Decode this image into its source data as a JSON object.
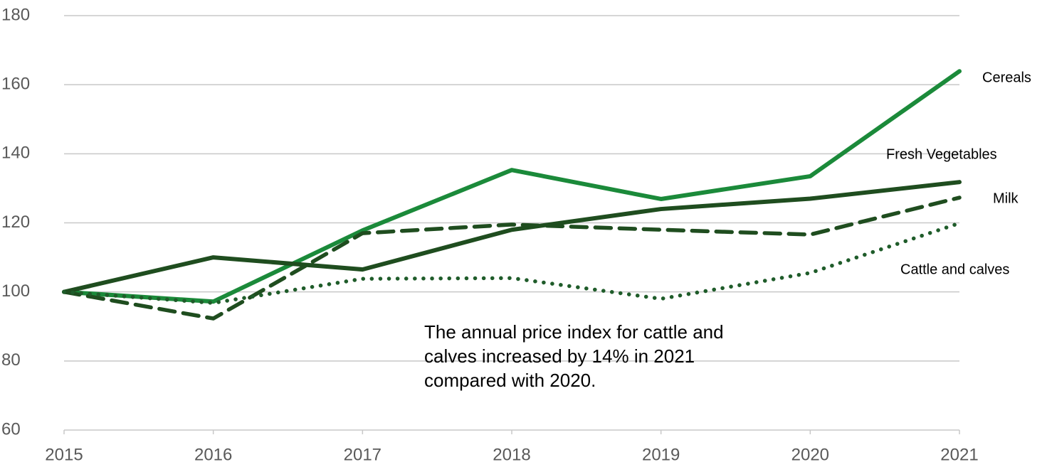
{
  "chart_data": {
    "type": "line",
    "annotation": "The annual price index for cattle and calves increased by 14% in 2021 compared with 2020.",
    "x": [
      2015,
      2016,
      2017,
      2018,
      2019,
      2020,
      2021
    ],
    "xlim": [
      2015,
      2021
    ],
    "xticks": [
      2015,
      2016,
      2017,
      2018,
      2019,
      2020,
      2021
    ],
    "ylim": [
      60,
      180
    ],
    "yticks": [
      60,
      80,
      100,
      120,
      140,
      160,
      180
    ],
    "grid": true,
    "series": [
      {
        "name": "Cereals",
        "color": "#1b8a3a",
        "dash": "solid",
        "values": [
          100,
          97.2,
          117.8,
          135.3,
          126.9,
          133.5,
          163.9
        ]
      },
      {
        "name": "Fresh Vegetables",
        "color": "#1f4d1f",
        "dash": "solid",
        "values": [
          100,
          110,
          106.5,
          118,
          124,
          127,
          131.8
        ]
      },
      {
        "name": "Milk",
        "color": "#1f4d1f",
        "dash": "dashed",
        "values": [
          100,
          92.3,
          117,
          119.5,
          118,
          116.6,
          127.3
        ]
      },
      {
        "name": "Cattle and calves",
        "color": "#1f5c2a",
        "dash": "dotted",
        "values": [
          100,
          96.8,
          103.8,
          104,
          98,
          105.5,
          119.9
        ]
      }
    ]
  }
}
